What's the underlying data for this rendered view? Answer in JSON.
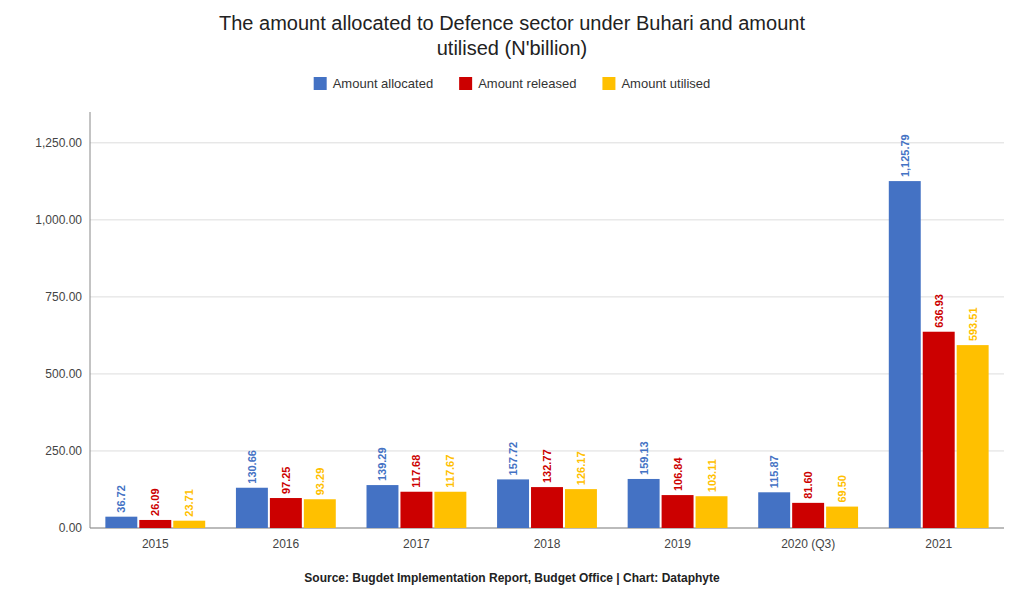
{
  "chart_data": {
    "type": "bar",
    "title": "The amount allocated to Defence sector under Buhari and amount\nutilised (N'billion)",
    "source": "Source: Bugdet Implementation Report, Budget Office | Chart: Dataphyte",
    "categories": [
      "2015",
      "2016",
      "2017",
      "2018",
      "2019",
      "2020 (Q3)",
      "2021"
    ],
    "series": [
      {
        "name": "Amount allocated",
        "color": "#4472C4",
        "values": [
          36.72,
          130.66,
          139.29,
          157.72,
          159.13,
          115.87,
          1125.79
        ],
        "value_labels": [
          "36.72",
          "130.66",
          "139.29",
          "157.72",
          "159.13",
          "115.87",
          "1,125.79"
        ]
      },
      {
        "name": "Amount released",
        "color": "#CC0000",
        "values": [
          26.09,
          97.25,
          117.68,
          132.77,
          106.84,
          81.6,
          636.93
        ],
        "value_labels": [
          "26.09",
          "97.25",
          "117.68",
          "132.77",
          "106.84",
          "81.60",
          "636.93"
        ]
      },
      {
        "name": "Amount utilised",
        "color": "#FFC000",
        "values": [
          23.71,
          93.29,
          117.67,
          126.17,
          103.11,
          69.5,
          593.51
        ],
        "value_labels": [
          "23.71",
          "93.29",
          "117.67",
          "126.17",
          "103.11",
          "69.50",
          "593.51"
        ]
      }
    ],
    "ylim": [
      0,
      1350
    ],
    "yticks": [
      {
        "value": 0,
        "label": "0.00"
      },
      {
        "value": 250,
        "label": "250.00"
      },
      {
        "value": 500,
        "label": "500.00"
      },
      {
        "value": 750,
        "label": "750.00"
      },
      {
        "value": 1000,
        "label": "1,000.00"
      },
      {
        "value": 1250,
        "label": "1,250.00"
      }
    ],
    "grid": true,
    "legend": "top",
    "data_labels": true
  }
}
